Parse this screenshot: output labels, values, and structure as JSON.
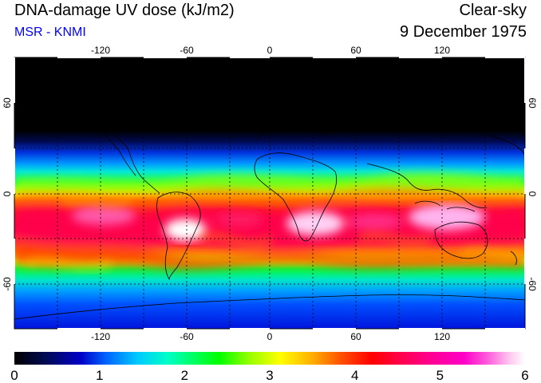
{
  "header": {
    "title": "DNA-damage UV dose (kJ/m2)",
    "subtitle": "MSR - KNMI",
    "condition": "Clear-sky",
    "date": "9 December 1975"
  },
  "colors": {
    "subtitle": "#0000ff",
    "scale": [
      "#000000",
      "#000a50",
      "#0000c8",
      "#0064ff",
      "#00c8ff",
      "#00ffc8",
      "#00ff00",
      "#96ff00",
      "#ffff00",
      "#ffb400",
      "#ff5000",
      "#ff0000",
      "#ff0050",
      "#ff0096",
      "#ff00c8",
      "#ff64dc",
      "#ffc8f0",
      "#ffffff"
    ]
  },
  "map": {
    "lon_ticks": [
      "-120",
      "-60",
      "0",
      "60",
      "120"
    ],
    "lat_ticks": [
      "60",
      "0",
      "-60"
    ]
  },
  "colorbar": {
    "min": 0,
    "max": 6,
    "labels": [
      "0",
      "1",
      "2",
      "3",
      "4",
      "5",
      "6"
    ]
  }
}
